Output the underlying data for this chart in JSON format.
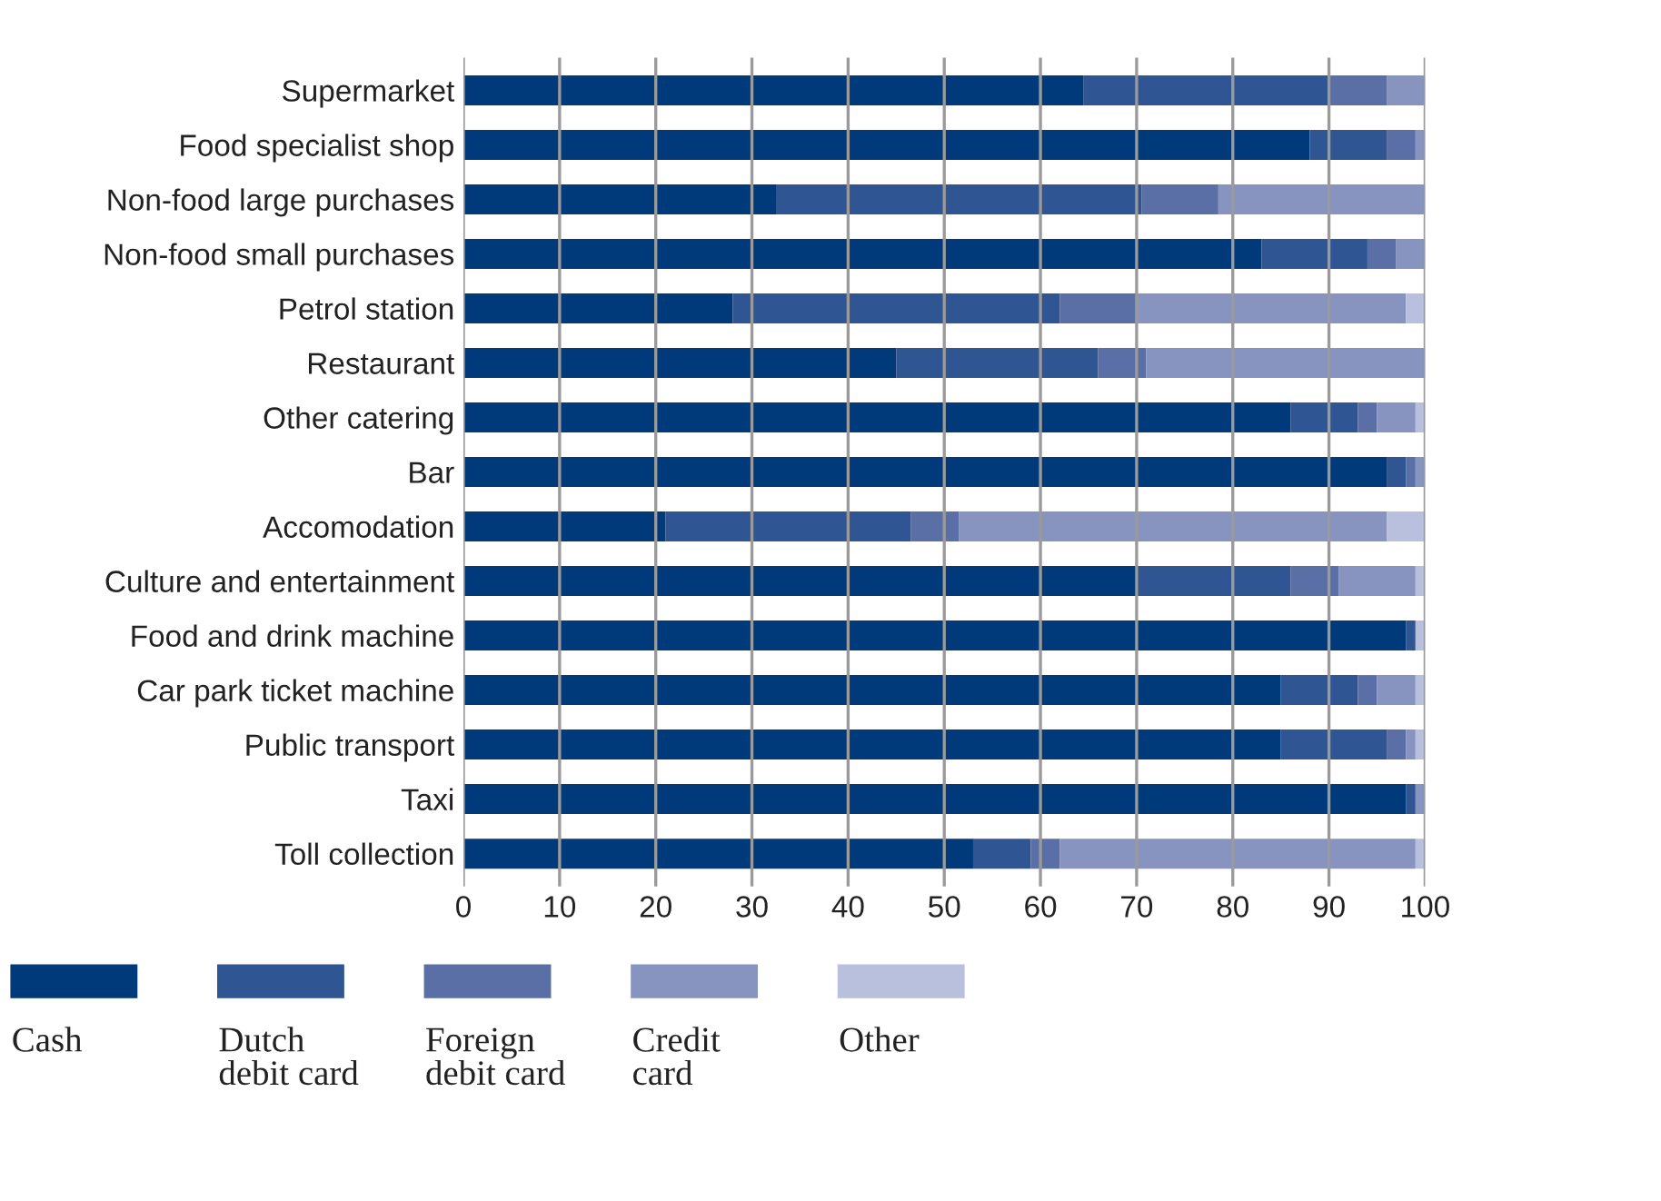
{
  "chart_data": {
    "type": "bar",
    "orientation": "horizontal",
    "stacked": true,
    "categories": [
      "Supermarket",
      "Food specialist shop",
      "Non-food large purchases",
      "Non-food small purchases",
      "Petrol station",
      "Restaurant",
      "Other catering",
      "Bar",
      "Accomodation",
      "Culture and entertainment",
      "Food and drink machine",
      "Car park ticket machine",
      "Public transport",
      "Taxi",
      "Toll collection"
    ],
    "series": [
      {
        "name": "Cash",
        "color": "#003a7a",
        "values": [
          64.5,
          88,
          32.5,
          83,
          28,
          45,
          86,
          96,
          21,
          70,
          98,
          85,
          85,
          98,
          53
        ]
      },
      {
        "name": "Dutch\ndebit card",
        "color": "#2f5592",
        "values": [
          25.5,
          8,
          38,
          11,
          34,
          21,
          7,
          2,
          25.5,
          16,
          1,
          8,
          11,
          1,
          6
        ]
      },
      {
        "name": "Foreign\ndebit card",
        "color": "#5a6fa5",
        "values": [
          6,
          3,
          8,
          3,
          8,
          5,
          2,
          1,
          5,
          5,
          0,
          2,
          2,
          0,
          3
        ]
      },
      {
        "name": "Credit\ncard",
        "color": "#8794bf",
        "values": [
          4,
          1,
          21.5,
          3,
          28,
          29,
          4,
          1,
          44.5,
          8,
          0,
          4,
          1,
          1,
          37
        ]
      },
      {
        "name": "Other",
        "color": "#b8c0dd",
        "values": [
          0,
          0,
          0,
          0,
          2,
          0,
          1,
          0,
          4,
          1,
          1,
          1,
          1,
          0,
          1
        ]
      }
    ],
    "xlim": [
      0,
      100
    ],
    "xticks": [
      0,
      10,
      20,
      30,
      40,
      50,
      60,
      70,
      80,
      90,
      100
    ],
    "grid": "x",
    "legend": "bottom"
  }
}
